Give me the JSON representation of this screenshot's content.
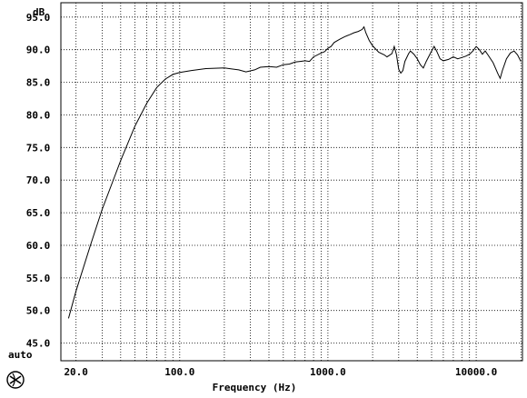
{
  "chart_data": {
    "type": "line",
    "title": "",
    "xlabel": "Frequency (Hz)",
    "ylabel": "dB",
    "x_scale": "log",
    "xlim": [
      15.8,
      20500
    ],
    "ylim": [
      42.3,
      97.2
    ],
    "grid": true,
    "x_ticks": [
      {
        "value": 20,
        "label": "20.0"
      },
      {
        "value": 100,
        "label": "100.0"
      },
      {
        "value": 1000,
        "label": "1000.0"
      },
      {
        "value": 10000,
        "label": "10000.0"
      }
    ],
    "y_ticks": [
      {
        "value": 95,
        "label": "95.0"
      },
      {
        "value": 90,
        "label": "90.0"
      },
      {
        "value": 85,
        "label": "85.0"
      },
      {
        "value": 80,
        "label": "80.0"
      },
      {
        "value": 75,
        "label": "75.0"
      },
      {
        "value": 70,
        "label": "70.0"
      },
      {
        "value": 65,
        "label": "65.0"
      },
      {
        "value": 60,
        "label": "60.0"
      },
      {
        "value": 55,
        "label": "55.0"
      },
      {
        "value": 50,
        "label": "50.0"
      },
      {
        "value": 45,
        "label": "45.0"
      }
    ],
    "y_bottom_label": "auto",
    "series": [
      {
        "color": "#000000",
        "points": [
          [
            17.8,
            48.8
          ],
          [
            20,
            53
          ],
          [
            25,
            60
          ],
          [
            30,
            65.5
          ],
          [
            40,
            73
          ],
          [
            50,
            78.3
          ],
          [
            60,
            81.8
          ],
          [
            70,
            84.2
          ],
          [
            80,
            85.5
          ],
          [
            90,
            86.2
          ],
          [
            100,
            86.5
          ],
          [
            120,
            86.8
          ],
          [
            150,
            87.1
          ],
          [
            200,
            87.2
          ],
          [
            250,
            86.9
          ],
          [
            280,
            86.6
          ],
          [
            320,
            86.9
          ],
          [
            350,
            87.3
          ],
          [
            400,
            87.4
          ],
          [
            450,
            87.3
          ],
          [
            500,
            87.7
          ],
          [
            550,
            87.8
          ],
          [
            600,
            88.1
          ],
          [
            650,
            88.2
          ],
          [
            700,
            88.3
          ],
          [
            750,
            88.2
          ],
          [
            800,
            88.9
          ],
          [
            900,
            89.5
          ],
          [
            950,
            89.7
          ],
          [
            1000,
            90.2
          ],
          [
            1050,
            90.5
          ],
          [
            1100,
            91.1
          ],
          [
            1200,
            91.6
          ],
          [
            1300,
            92.0
          ],
          [
            1400,
            92.3
          ],
          [
            1500,
            92.6
          ],
          [
            1600,
            92.8
          ],
          [
            1700,
            93.1
          ],
          [
            1750,
            93.5
          ],
          [
            1800,
            92.6
          ],
          [
            1900,
            91.4
          ],
          [
            2000,
            90.6
          ],
          [
            2100,
            90.1
          ],
          [
            2200,
            89.6
          ],
          [
            2400,
            89.2
          ],
          [
            2500,
            88.9
          ],
          [
            2700,
            89.4
          ],
          [
            2800,
            90.5
          ],
          [
            2900,
            89.2
          ],
          [
            3000,
            87.0
          ],
          [
            3100,
            86.4
          ],
          [
            3200,
            86.8
          ],
          [
            3300,
            88.2
          ],
          [
            3500,
            89.4
          ],
          [
            3600,
            89.8
          ],
          [
            3800,
            89.3
          ],
          [
            4000,
            88.6
          ],
          [
            4200,
            87.7
          ],
          [
            4400,
            87.2
          ],
          [
            4600,
            88.2
          ],
          [
            5000,
            89.8
          ],
          [
            5200,
            90.5
          ],
          [
            5400,
            89.8
          ],
          [
            5700,
            88.6
          ],
          [
            6000,
            88.3
          ],
          [
            6500,
            88.5
          ],
          [
            7000,
            88.9
          ],
          [
            7500,
            88.6
          ],
          [
            8000,
            88.8
          ],
          [
            8500,
            89.0
          ],
          [
            9000,
            89.3
          ],
          [
            9500,
            89.8
          ],
          [
            10000,
            90.5
          ],
          [
            10500,
            90.0
          ],
          [
            11000,
            89.3
          ],
          [
            11500,
            89.8
          ],
          [
            12000,
            89.2
          ],
          [
            13000,
            88.0
          ],
          [
            14000,
            86.3
          ],
          [
            14500,
            85.6
          ],
          [
            15000,
            86.8
          ],
          [
            16000,
            88.6
          ],
          [
            17000,
            89.5
          ],
          [
            18000,
            89.8
          ],
          [
            19000,
            89.2
          ],
          [
            20000,
            88.2
          ]
        ]
      }
    ]
  },
  "logo": {
    "icon": "roundel-logo-icon"
  }
}
